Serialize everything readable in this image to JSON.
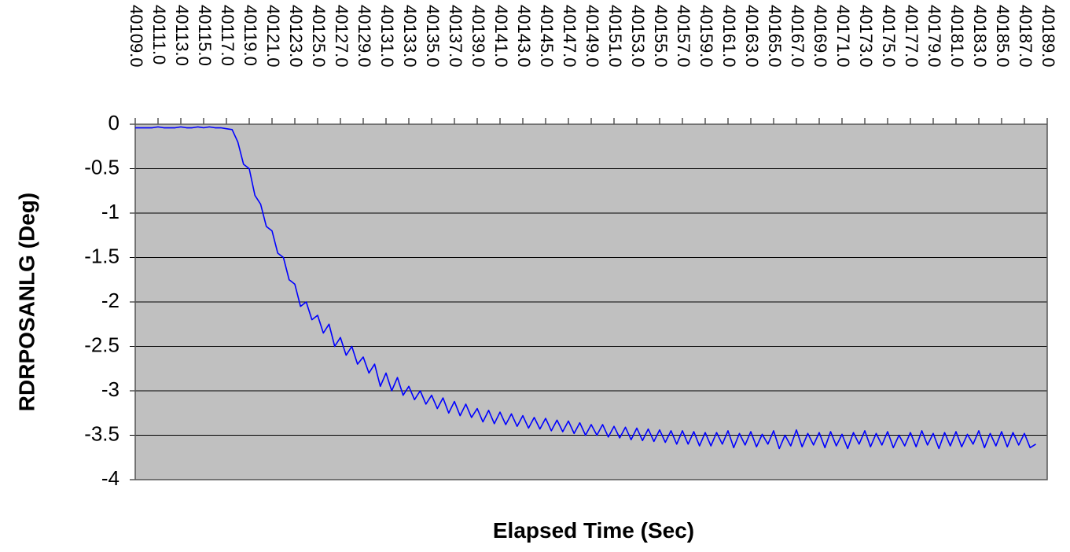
{
  "chart_data": {
    "type": "line",
    "x_label": "Elapsed Time (Sec)",
    "y_label": "RDRPOSANLG (Deg)",
    "xlim": [
      40109,
      40189
    ],
    "ylim": [
      -4,
      0
    ],
    "yticks": [
      0,
      -0.5,
      -1,
      -1.5,
      -2,
      -2.5,
      -3,
      -3.5,
      -4
    ],
    "xticks": [
      {
        "value": 40109,
        "label": "40109.0"
      },
      {
        "value": 40111,
        "label": "40111.0"
      },
      {
        "value": 40113,
        "label": "40113.0"
      },
      {
        "value": 40115,
        "label": "40115.0"
      },
      {
        "value": 40117,
        "label": "40117.0"
      },
      {
        "value": 40119,
        "label": "40119.0"
      },
      {
        "value": 40121,
        "label": "40121.0"
      },
      {
        "value": 40123,
        "label": "40123.0"
      },
      {
        "value": 40125,
        "label": "40125.0"
      },
      {
        "value": 40127,
        "label": "40127.0"
      },
      {
        "value": 40129,
        "label": "40129.0"
      },
      {
        "value": 40131,
        "label": "40131.0"
      },
      {
        "value": 40133,
        "label": "40133.0"
      },
      {
        "value": 40135,
        "label": "40135.0"
      },
      {
        "value": 40137,
        "label": "40137.0"
      },
      {
        "value": 40139,
        "label": "40139.0"
      },
      {
        "value": 40141,
        "label": "40141.0"
      },
      {
        "value": 40143,
        "label": "40143.0"
      },
      {
        "value": 40145,
        "label": "40145.0"
      },
      {
        "value": 40147,
        "label": "40147.0"
      },
      {
        "value": 40149,
        "label": "40149.0"
      },
      {
        "value": 40151,
        "label": "40151.0"
      },
      {
        "value": 40153,
        "label": "40153.0"
      },
      {
        "value": 40155,
        "label": "40155.0"
      },
      {
        "value": 40157,
        "label": "40157.0"
      },
      {
        "value": 40159,
        "label": "40159.0"
      },
      {
        "value": 40161,
        "label": "40161.0"
      },
      {
        "value": 40163,
        "label": "40163.0"
      },
      {
        "value": 40165,
        "label": "40165.0"
      },
      {
        "value": 40167,
        "label": "40167.0"
      },
      {
        "value": 40169,
        "label": "40169.0"
      },
      {
        "value": 40171,
        "label": "40171.0"
      },
      {
        "value": 40173,
        "label": "40173.0"
      },
      {
        "value": 40175,
        "label": "40175.0"
      },
      {
        "value": 40177,
        "label": "40177.0"
      },
      {
        "value": 40179,
        "label": "40179.0"
      },
      {
        "value": 40181,
        "label": "40181.0"
      },
      {
        "value": 40183,
        "label": "40183.0"
      },
      {
        "value": 40185,
        "label": "40185.0"
      },
      {
        "value": 40187,
        "label": "40187.0"
      },
      {
        "value": 40189,
        "label": "40189.0"
      }
    ],
    "grid": true,
    "plot_background": "#c0c0c0",
    "x": [
      40109,
      40109.5,
      40110,
      40110.5,
      40111,
      40111.5,
      40112,
      40112.5,
      40113,
      40113.5,
      40114,
      40114.5,
      40115,
      40115.5,
      40116,
      40116.5,
      40117,
      40117.5,
      40118,
      40118.5,
      40119,
      40119.5,
      40120,
      40120.5,
      40121,
      40121.5,
      40122,
      40122.5,
      40123,
      40123.5,
      40124,
      40124.5,
      40125,
      40125.5,
      40126,
      40126.5,
      40127,
      40127.5,
      40128,
      40128.5,
      40129,
      40129.5,
      40130,
      40130.5,
      40131,
      40131.5,
      40132,
      40132.5,
      40133,
      40133.5,
      40134,
      40134.5,
      40135,
      40135.5,
      40136,
      40136.5,
      40137,
      40137.5,
      40138,
      40138.5,
      40139,
      40139.5,
      40140,
      40140.5,
      40141,
      40141.5,
      40142,
      40142.5,
      40143,
      40143.5,
      40144,
      40144.5,
      40145,
      40145.5,
      40146,
      40146.5,
      40147,
      40147.5,
      40148,
      40148.5,
      40149,
      40149.5,
      40150,
      40150.5,
      40151,
      40151.5,
      40152,
      40152.5,
      40153,
      40153.5,
      40154,
      40154.5,
      40155,
      40155.5,
      40156,
      40156.5,
      40157,
      40157.5,
      40158,
      40158.5,
      40159,
      40159.5,
      40160,
      40160.5,
      40161,
      40161.5,
      40162,
      40162.5,
      40163,
      40163.5,
      40164,
      40164.5,
      40165,
      40165.5,
      40166,
      40166.5,
      40167,
      40167.5,
      40168,
      40168.5,
      40169,
      40169.5,
      40170,
      40170.5,
      40171,
      40171.5,
      40172,
      40172.5,
      40173,
      40173.5,
      40174,
      40174.5,
      40175,
      40175.5,
      40176,
      40176.5,
      40177,
      40177.5,
      40178,
      40178.5,
      40179,
      40179.5,
      40180,
      40180.5,
      40181,
      40181.5,
      40182,
      40182.5,
      40183,
      40183.5,
      40184,
      40184.5,
      40185,
      40185.5,
      40186,
      40186.5,
      40187,
      40187.5,
      40188
    ],
    "series": [
      {
        "name": "RDRPOSANLG",
        "color": "#0000ff",
        "values": [
          -0.04,
          -0.04,
          -0.04,
          -0.04,
          -0.03,
          -0.04,
          -0.04,
          -0.04,
          -0.03,
          -0.04,
          -0.04,
          -0.03,
          -0.04,
          -0.03,
          -0.04,
          -0.04,
          -0.05,
          -0.06,
          -0.2,
          -0.45,
          -0.5,
          -0.8,
          -0.9,
          -1.15,
          -1.2,
          -1.45,
          -1.5,
          -1.75,
          -1.8,
          -2.05,
          -2.0,
          -2.2,
          -2.15,
          -2.35,
          -2.25,
          -2.5,
          -2.4,
          -2.6,
          -2.5,
          -2.7,
          -2.62,
          -2.8,
          -2.7,
          -2.95,
          -2.8,
          -3.0,
          -2.85,
          -3.05,
          -2.95,
          -3.1,
          -3.0,
          -3.15,
          -3.05,
          -3.2,
          -3.08,
          -3.25,
          -3.12,
          -3.28,
          -3.15,
          -3.3,
          -3.2,
          -3.35,
          -3.22,
          -3.37,
          -3.24,
          -3.38,
          -3.26,
          -3.4,
          -3.28,
          -3.42,
          -3.3,
          -3.43,
          -3.31,
          -3.45,
          -3.33,
          -3.46,
          -3.34,
          -3.48,
          -3.36,
          -3.5,
          -3.38,
          -3.5,
          -3.38,
          -3.52,
          -3.4,
          -3.53,
          -3.41,
          -3.55,
          -3.42,
          -3.56,
          -3.43,
          -3.57,
          -3.44,
          -3.58,
          -3.45,
          -3.6,
          -3.45,
          -3.6,
          -3.46,
          -3.62,
          -3.47,
          -3.62,
          -3.47,
          -3.6,
          -3.45,
          -3.64,
          -3.48,
          -3.61,
          -3.46,
          -3.63,
          -3.49,
          -3.6,
          -3.45,
          -3.65,
          -3.5,
          -3.62,
          -3.44,
          -3.63,
          -3.48,
          -3.61,
          -3.47,
          -3.64,
          -3.46,
          -3.62,
          -3.49,
          -3.65,
          -3.47,
          -3.6,
          -3.45,
          -3.63,
          -3.48,
          -3.61,
          -3.46,
          -3.64,
          -3.5,
          -3.62,
          -3.47,
          -3.63,
          -3.45,
          -3.61,
          -3.48,
          -3.65,
          -3.47,
          -3.62,
          -3.46,
          -3.63,
          -3.49,
          -3.6,
          -3.45,
          -3.64,
          -3.48,
          -3.62,
          -3.46,
          -3.63,
          -3.47,
          -3.61,
          -3.48,
          -3.64,
          -3.6
        ]
      }
    ]
  }
}
